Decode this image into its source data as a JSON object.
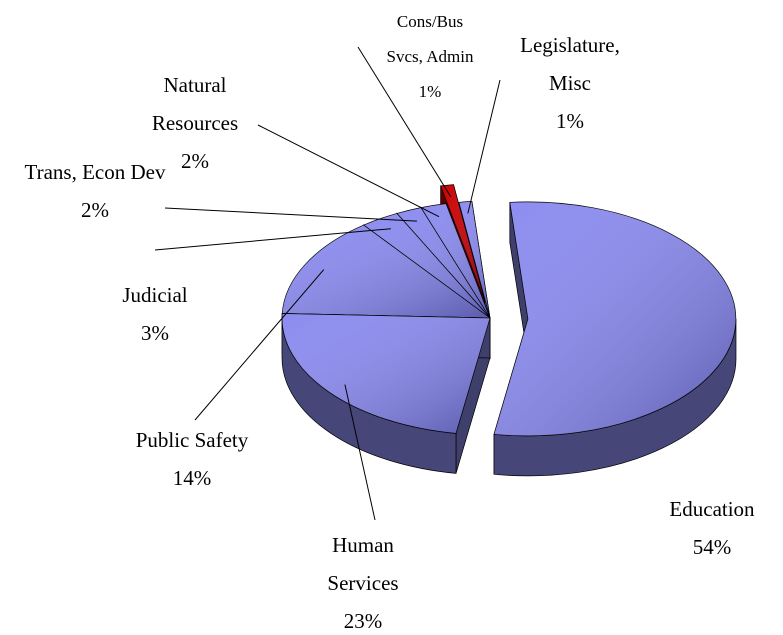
{
  "chart_data": {
    "type": "pie",
    "categories": [
      "Education",
      "Human Services",
      "Public Safety",
      "Judicial",
      "Trans, Econ Dev",
      "Natural Resources",
      "Cons/Bus Svcs, Admin",
      "Legislature, Misc"
    ],
    "values": [
      54,
      23,
      14,
      3,
      2,
      2,
      1,
      1
    ],
    "value_labels": [
      "54%",
      "23%",
      "14%",
      "3%",
      "2%",
      "2%",
      "1%",
      "1%"
    ],
    "colors": [
      "#8c8cf0",
      "#8c8cf0",
      "#8c8cf0",
      "#8c8cf0",
      "#8c8cf0",
      "#8c8cf0",
      "#cc0000",
      "#8c8cf0"
    ]
  }
}
